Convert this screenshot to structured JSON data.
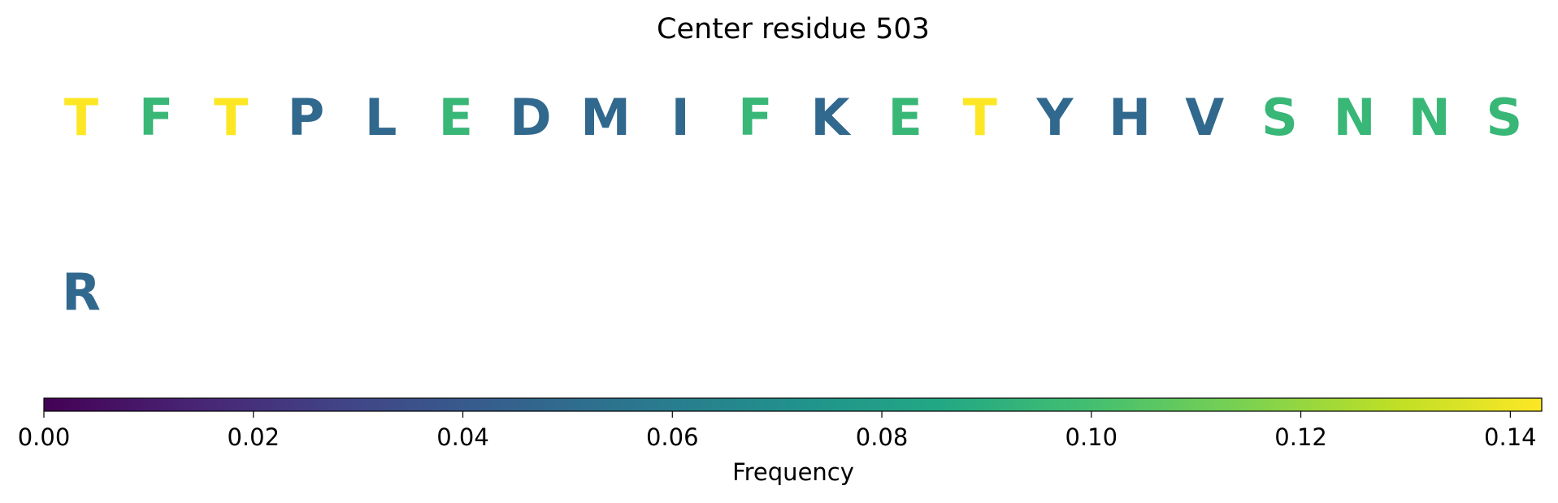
{
  "chart_data": {
    "type": "residue-heat",
    "title": "Center residue 503",
    "categories": [
      "T",
      "F",
      "T",
      "P",
      "L",
      "E",
      "D",
      "M",
      "I",
      "F",
      "K",
      "E",
      "T",
      "Y",
      "H",
      "V",
      "S",
      "N",
      "N",
      "S",
      "R"
    ],
    "values": [
      0.143,
      0.095,
      0.143,
      0.048,
      0.048,
      0.095,
      0.048,
      0.048,
      0.048,
      0.095,
      0.048,
      0.095,
      0.143,
      0.048,
      0.048,
      0.048,
      0.095,
      0.095,
      0.095,
      0.095,
      0.048
    ],
    "colormap": "viridis",
    "xlabel": "Frequency",
    "xlim": [
      0,
      0.143
    ],
    "xticks": [
      {
        "value": 0,
        "label": "0.00"
      },
      0.02,
      0.04,
      0.06,
      0.08,
      {
        "value": 0.1,
        "label": "0.10"
      },
      0.12,
      0.14
    ]
  }
}
